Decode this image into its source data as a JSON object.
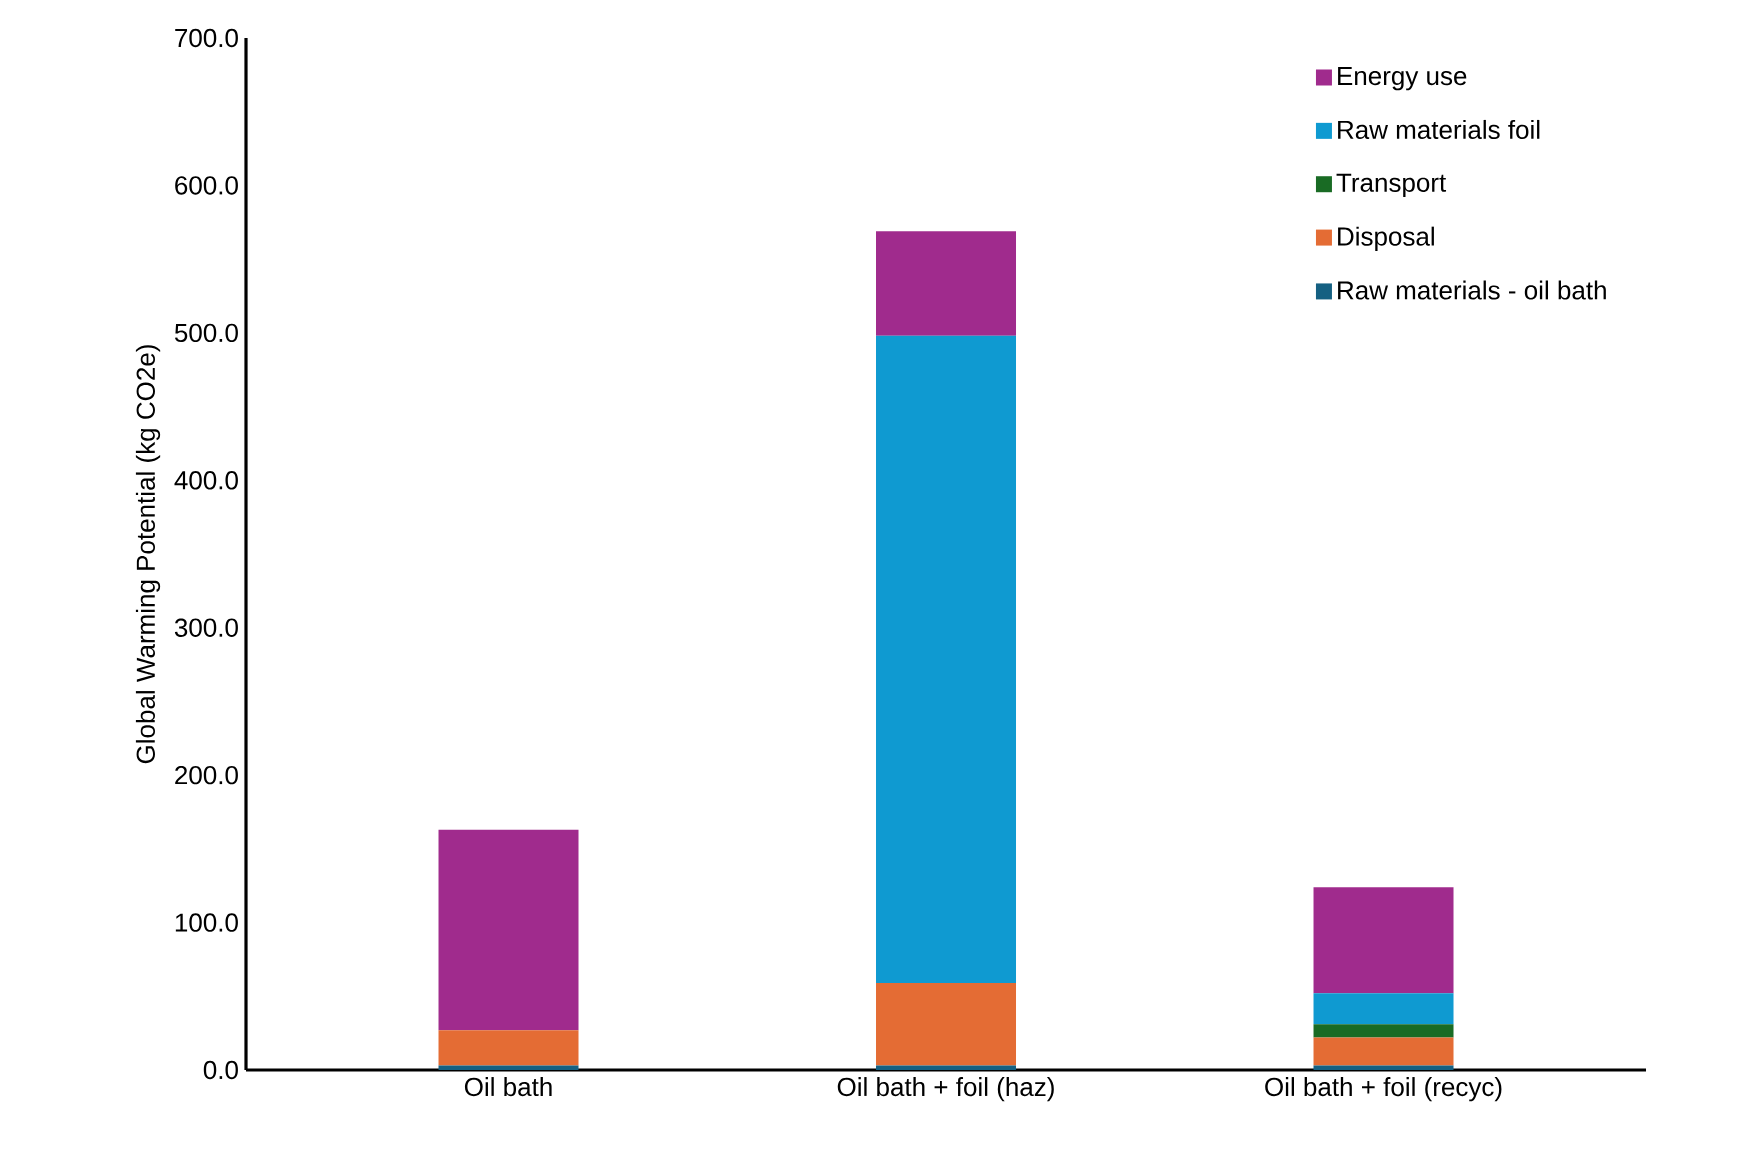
{
  "chart_data": {
    "type": "bar",
    "stacked": true,
    "ylabel": "Global Warming Potential (kg CO2e)",
    "categories": [
      "Oil bath",
      "Oil bath + foil (haz)",
      "Oil bath + foil (recyc)"
    ],
    "series": [
      {
        "name": "Raw materials - oil bath",
        "color": "#156082",
        "values": [
          3,
          3,
          3
        ]
      },
      {
        "name": "Disposal",
        "color": "#e46c34",
        "values": [
          24,
          56,
          19
        ]
      },
      {
        "name": "Transport",
        "color": "#196b24",
        "values": [
          0,
          0,
          9
        ]
      },
      {
        "name": "Raw materials foil",
        "color": "#0f9ad1",
        "values": [
          0,
          439,
          21
        ]
      },
      {
        "name": "Energy use",
        "color": "#a02b8d",
        "values": [
          136,
          71,
          72
        ]
      }
    ],
    "ylim": [
      0,
      700
    ],
    "yticks": [
      {
        "value": 0,
        "label": "0.0"
      },
      {
        "value": 100,
        "label": "100.0"
      },
      {
        "value": 200,
        "label": "200.0"
      },
      {
        "value": 300,
        "label": "300.0"
      },
      {
        "value": 400,
        "label": "400.0"
      },
      {
        "value": 500,
        "label": "500.0"
      },
      {
        "value": 600,
        "label": "600.0"
      },
      {
        "value": 700,
        "label": "700.0"
      }
    ],
    "grid": false,
    "legend": "top right"
  }
}
